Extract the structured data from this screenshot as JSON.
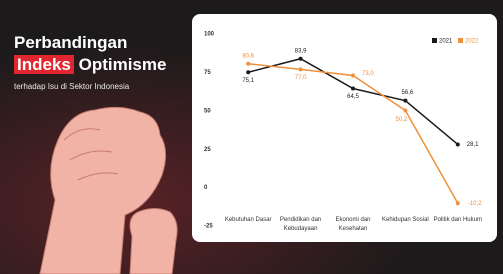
{
  "header": {
    "title_line1": "Perbandingan",
    "title_highlight": "Indeks",
    "title_rest": "Optimisme",
    "subtitle": "terhadap Isu di Sektor Indonesia"
  },
  "chart_data": {
    "type": "line",
    "categories": [
      "Kebutuhan Dasar",
      "Pendidikan dan Kebudayaan",
      "Ekonomi dan Kesehatan",
      "Kehidupan Sosial",
      "Politik dan Hukum"
    ],
    "series": [
      {
        "name": "2021",
        "color": "#1a1a1a",
        "values": [
          75.1,
          83.9,
          64.5,
          56.6,
          28.1
        ],
        "value_labels": [
          "75,1",
          "83,9",
          "64,5",
          "56,6",
          "28,1"
        ]
      },
      {
        "name": "2022",
        "color": "#f0903a",
        "values": [
          80.6,
          77.0,
          73.0,
          50.2,
          -10.2
        ],
        "value_labels": [
          "80,6",
          "77,0",
          "73,0",
          "50,2",
          "-10,2"
        ]
      }
    ],
    "ylim": [
      -25,
      100
    ],
    "yticks": [
      -25,
      0,
      25,
      50,
      75,
      100
    ],
    "legend": "top-right"
  }
}
